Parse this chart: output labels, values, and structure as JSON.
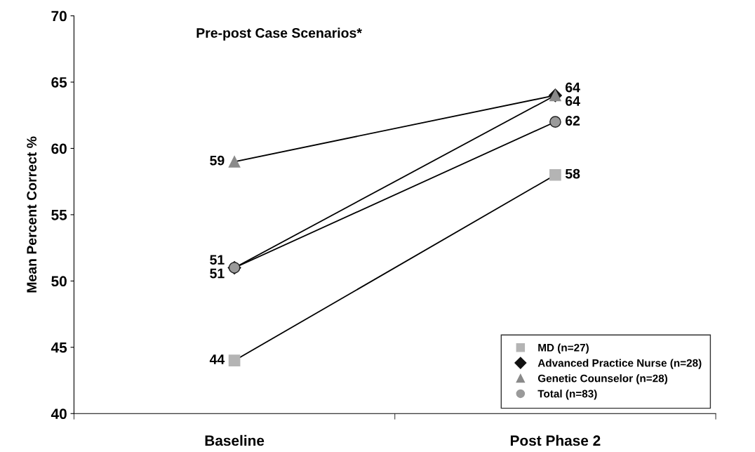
{
  "chart_data": {
    "type": "line",
    "title": "Pre-post Case Scenarios*",
    "ylabel": "Mean Percent Correct %",
    "categories": [
      "Baseline",
      "Post Phase 2"
    ],
    "series": [
      {
        "name": "MD (n=27)",
        "color": "#b4b4b4",
        "marker": "square",
        "values": [
          44,
          58
        ]
      },
      {
        "name": "Advanced Practice Nurse (n=28)",
        "color": "#111111",
        "marker": "diamond",
        "values": [
          51,
          64
        ]
      },
      {
        "name": "Genetic Counselor (n=28)",
        "color": "#8a8a8a",
        "marker": "triangle",
        "values": [
          59,
          64
        ]
      },
      {
        "name": "Total (n=83)",
        "color": "#9a9a9a",
        "marker": "circle",
        "values": [
          51,
          62
        ]
      }
    ],
    "ylim": [
      40,
      70
    ],
    "yticks": [
      40,
      45,
      50,
      55,
      60,
      65,
      70
    ],
    "grid": false,
    "legend": "bottom right",
    "data_labels": true
  }
}
